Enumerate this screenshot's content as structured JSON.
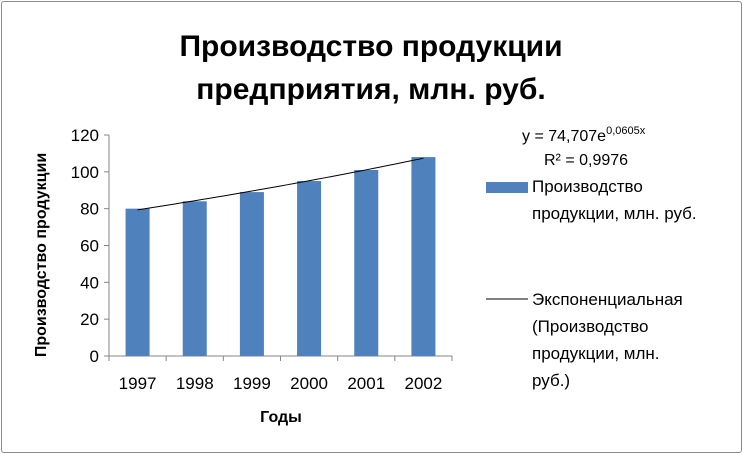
{
  "chart_data": {
    "type": "bar",
    "title_line1": "Производство продукции",
    "title_line2": "предприятия, млн. руб.",
    "xlabel": "Годы",
    "ylabel": "Производство продукции",
    "categories": [
      "1997",
      "1998",
      "1999",
      "2000",
      "2001",
      "2002"
    ],
    "series": [
      {
        "name": "Производство продукции, млн. руб.",
        "values": [
          80,
          84,
          89,
          95,
          101,
          108
        ],
        "color": "#4f81bd"
      }
    ],
    "trendline": {
      "type": "exponential",
      "a": 74.707,
      "b": 0.0605,
      "color": "#000000",
      "equation": "y = 74,707e",
      "exponent": "0,0605x",
      "r2": "R² = 0,9976",
      "legend_lines": [
        "Экспоненциальная",
        "(Производство",
        "продукции, млн.",
        "руб.)"
      ]
    },
    "ylim": [
      0,
      120
    ],
    "yticks": [
      "0",
      "20",
      "40",
      "60",
      "80",
      "100",
      "120"
    ],
    "grid": false,
    "legend_placement": "right",
    "series_legend_lines": [
      "Производство",
      "продукции, млн. руб."
    ]
  }
}
